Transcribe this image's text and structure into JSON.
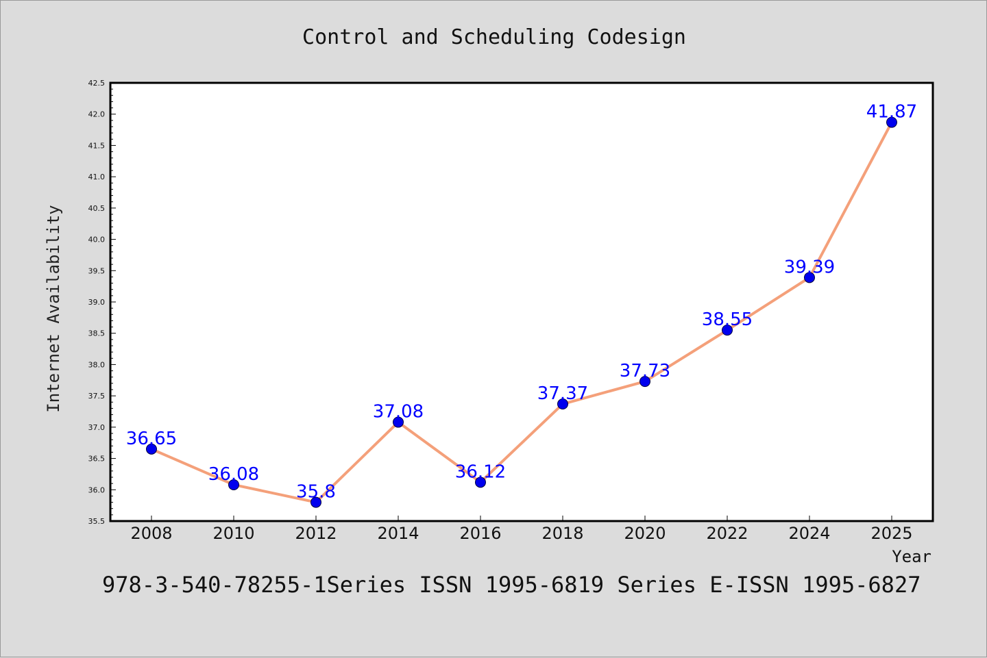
{
  "chart_data": {
    "type": "line",
    "title": "Control and Scheduling Codesign",
    "xlabel": "Year",
    "ylabel": "Internet Availability",
    "x": [
      "2008",
      "2010",
      "2012",
      "2014",
      "2016",
      "2018",
      "2020",
      "2022",
      "2024",
      "2025"
    ],
    "values": [
      36.65,
      36.08,
      35.8,
      37.08,
      36.12,
      37.37,
      37.73,
      38.55,
      39.39,
      41.87
    ],
    "data_labels": [
      "36.65",
      "36.08",
      "35.8",
      "37.08",
      "36.12",
      "37.37",
      "37.73",
      "38.55",
      "39.39",
      "41.87"
    ],
    "ylim": [
      35.5,
      42.5
    ],
    "yticks": [
      "35.5",
      "36.0",
      "36.5",
      "37.0",
      "37.5",
      "38.0",
      "38.5",
      "39.0",
      "39.5",
      "40.0",
      "40.5",
      "41.0",
      "41.5",
      "42.0",
      "42.5"
    ],
    "grid": false,
    "colors": {
      "line": "#f4a07a",
      "marker": "#0000ee",
      "label": "#0000ff",
      "plot_bg": "#ffffff",
      "page_bg": "#dcdcdc"
    }
  },
  "footer": "978-3-540-78255-1Series ISSN 1995-6819 Series E-ISSN 1995-6827"
}
